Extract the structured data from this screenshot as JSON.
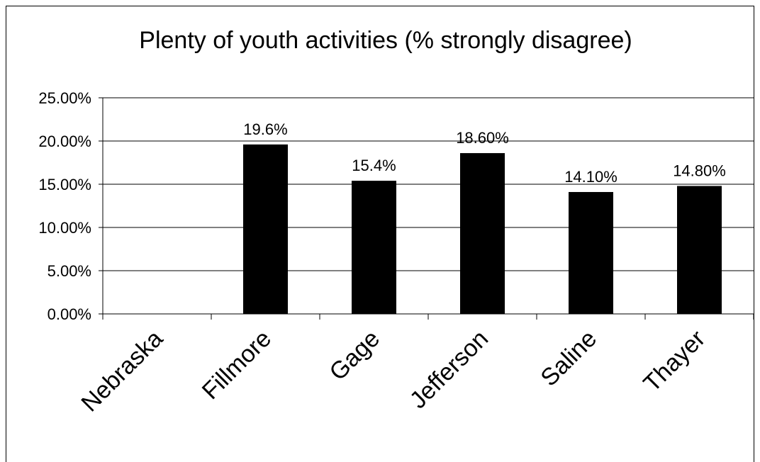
{
  "chart_data": {
    "type": "bar",
    "title": "Plenty of youth activities (% strongly disagree)",
    "categories": [
      "Nebraska",
      "Fillmore",
      "Gage",
      "Jefferson",
      "Saline",
      "Thayer"
    ],
    "values": [
      null,
      19.6,
      15.4,
      18.6,
      14.1,
      14.8
    ],
    "data_labels": [
      "",
      "19.6%",
      "15.4%",
      "18.60%",
      "14.10%",
      "14.80%"
    ],
    "ylim": [
      0,
      25
    ],
    "y_ticks": [
      {
        "value": 0,
        "label": "0.00%"
      },
      {
        "value": 5,
        "label": "5.00%"
      },
      {
        "value": 10,
        "label": "10.00%"
      },
      {
        "value": 15,
        "label": "15.00%"
      },
      {
        "value": 20,
        "label": "20.00%"
      },
      {
        "value": 25,
        "label": "25.00%"
      }
    ],
    "xlabel": "",
    "ylabel": "",
    "grid": true,
    "legend": "none",
    "bar_color": "#000000"
  }
}
